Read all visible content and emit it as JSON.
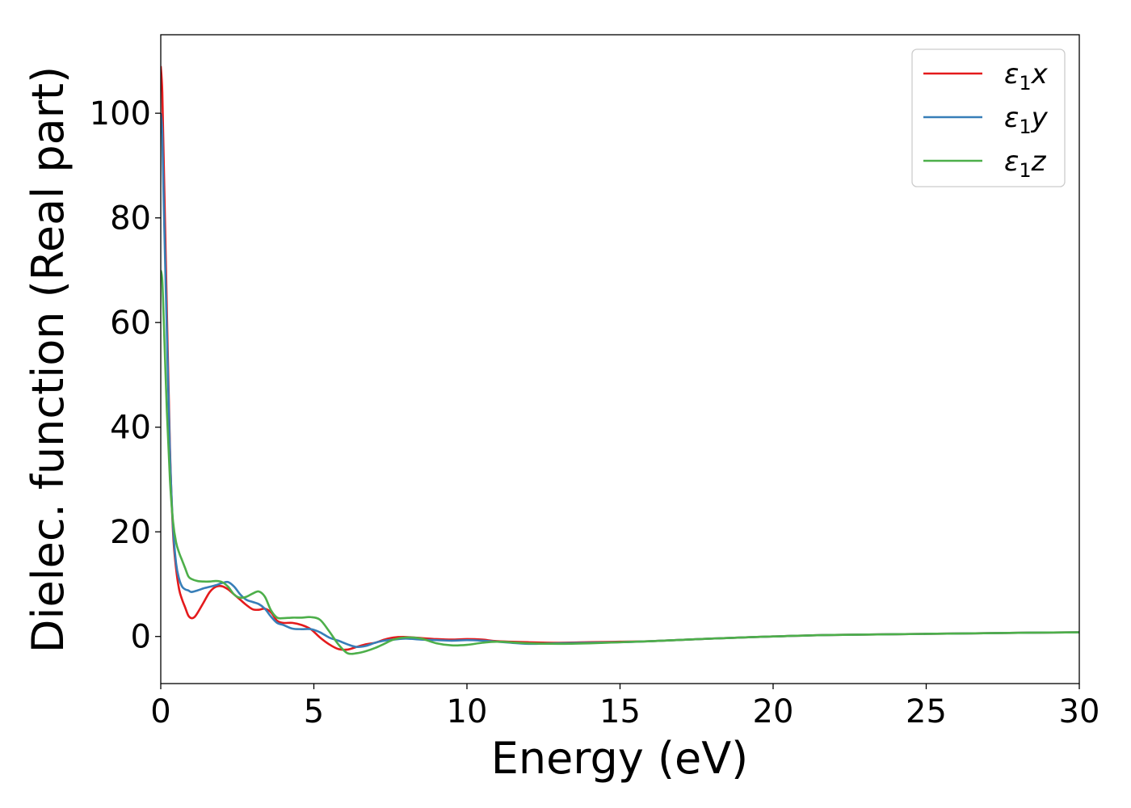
{
  "chart_data": {
    "type": "line",
    "xlabel": "Energy (eV)",
    "ylabel": "Dielec. function (Real part)",
    "xlim": [
      0,
      30
    ],
    "ylim": [
      -9,
      115
    ],
    "xticks": [
      0,
      5,
      10,
      15,
      20,
      25,
      30
    ],
    "yticks": [
      0,
      20,
      40,
      60,
      80,
      100
    ],
    "grid": false,
    "legend_position": "top-right",
    "series": [
      {
        "name": "ε₁x",
        "legend": {
          "base": "ε",
          "sub": "1",
          "suffix": "x"
        },
        "color": "#e41a1c",
        "x": [
          0.0,
          0.05,
          0.1,
          0.2,
          0.3,
          0.4,
          0.5,
          0.6,
          0.7,
          0.8,
          0.9,
          1.0,
          1.1,
          1.2,
          1.4,
          1.6,
          1.8,
          2.0,
          2.2,
          2.4,
          2.6,
          2.8,
          3.0,
          3.2,
          3.4,
          3.6,
          3.8,
          4.0,
          4.3,
          4.6,
          4.9,
          5.2,
          5.5,
          5.8,
          6.1,
          6.4,
          6.7,
          7.0,
          7.3,
          7.6,
          8.0,
          8.5,
          9.0,
          9.5,
          10.0,
          10.5,
          11.0,
          12.0,
          13.0,
          14.0,
          15.0,
          16.0,
          18.0,
          20.0,
          22.0,
          25.0,
          28.0,
          30.0
        ],
        "y": [
          109,
          104,
          90,
          62,
          36,
          20,
          13,
          9,
          7,
          5.5,
          4,
          3.5,
          3.7,
          4.5,
          6.5,
          8.5,
          9.5,
          9.6,
          9.0,
          8.0,
          7.0,
          6.0,
          5.2,
          5.1,
          5.3,
          4.6,
          3.0,
          2.6,
          2.6,
          2.2,
          1.4,
          -0.2,
          -1.5,
          -2.4,
          -2.5,
          -2.0,
          -1.5,
          -1.2,
          -0.6,
          -0.2,
          -0.1,
          -0.3,
          -0.5,
          -0.6,
          -0.5,
          -0.6,
          -0.9,
          -1.1,
          -1.2,
          -1.1,
          -1.0,
          -0.9,
          -0.4,
          0.0,
          0.3,
          0.5,
          0.7,
          0.8
        ]
      },
      {
        "name": "ε₁y",
        "legend": {
          "base": "ε",
          "sub": "1",
          "suffix": "y"
        },
        "color": "#377eb8",
        "x": [
          0.0,
          0.05,
          0.1,
          0.2,
          0.3,
          0.4,
          0.5,
          0.6,
          0.7,
          0.8,
          0.9,
          1.0,
          1.2,
          1.4,
          1.6,
          1.8,
          2.0,
          2.2,
          2.4,
          2.6,
          2.8,
          3.0,
          3.2,
          3.4,
          3.6,
          3.8,
          4.0,
          4.3,
          4.6,
          4.9,
          5.2,
          5.5,
          5.8,
          6.1,
          6.4,
          6.7,
          7.0,
          7.3,
          7.6,
          8.0,
          8.5,
          9.0,
          9.5,
          10.0,
          10.5,
          11.0,
          12.0,
          13.0,
          14.0,
          15.0,
          16.0,
          18.0,
          20.0,
          22.0,
          25.0,
          28.0,
          30.0
        ],
        "y": [
          100,
          96,
          82,
          58,
          35,
          21,
          14,
          11,
          9.5,
          9,
          8.8,
          8.5,
          8.8,
          9.2,
          9.5,
          9.8,
          10.2,
          10.4,
          9.5,
          8.0,
          7.0,
          6.6,
          6.2,
          5.3,
          3.8,
          2.6,
          2.2,
          1.5,
          1.4,
          1.4,
          0.8,
          -0.2,
          -0.8,
          -1.5,
          -2.0,
          -1.8,
          -1.2,
          -0.8,
          -0.6,
          -0.4,
          -0.6,
          -0.7,
          -0.8,
          -0.7,
          -0.8,
          -1.0,
          -1.4,
          -1.3,
          -1.2,
          -1.1,
          -0.9,
          -0.4,
          0.0,
          0.3,
          0.5,
          0.7,
          0.8
        ]
      },
      {
        "name": "ε₁z",
        "legend": {
          "base": "ε",
          "sub": "1",
          "suffix": "z"
        },
        "color": "#4daf4a",
        "x": [
          0.0,
          0.05,
          0.1,
          0.2,
          0.3,
          0.4,
          0.5,
          0.6,
          0.7,
          0.8,
          0.9,
          1.0,
          1.2,
          1.4,
          1.6,
          1.8,
          2.0,
          2.2,
          2.4,
          2.6,
          2.8,
          3.0,
          3.2,
          3.4,
          3.6,
          3.8,
          4.0,
          4.3,
          4.6,
          4.9,
          5.2,
          5.5,
          5.8,
          6.1,
          6.4,
          6.7,
          7.0,
          7.3,
          7.6,
          8.0,
          8.5,
          9.0,
          9.5,
          10.0,
          10.5,
          11.0,
          12.0,
          13.0,
          14.0,
          15.0,
          16.0,
          18.0,
          20.0,
          22.0,
          25.0,
          28.0,
          30.0
        ],
        "y": [
          70,
          68,
          60,
          43,
          30,
          22,
          18,
          16,
          14.5,
          13,
          11.5,
          11,
          10.6,
          10.5,
          10.5,
          10.6,
          10.4,
          9.5,
          8.0,
          7.4,
          7.6,
          8.2,
          8.6,
          7.6,
          5.0,
          3.6,
          3.5,
          3.6,
          3.6,
          3.7,
          3.2,
          1.0,
          -1.5,
          -3.2,
          -3.2,
          -2.8,
          -2.2,
          -1.4,
          -0.6,
          -0.2,
          -0.4,
          -1.3,
          -1.7,
          -1.6,
          -1.2,
          -1.0,
          -1.3,
          -1.4,
          -1.3,
          -1.1,
          -0.9,
          -0.4,
          0.0,
          0.3,
          0.5,
          0.7,
          0.8
        ]
      }
    ]
  }
}
